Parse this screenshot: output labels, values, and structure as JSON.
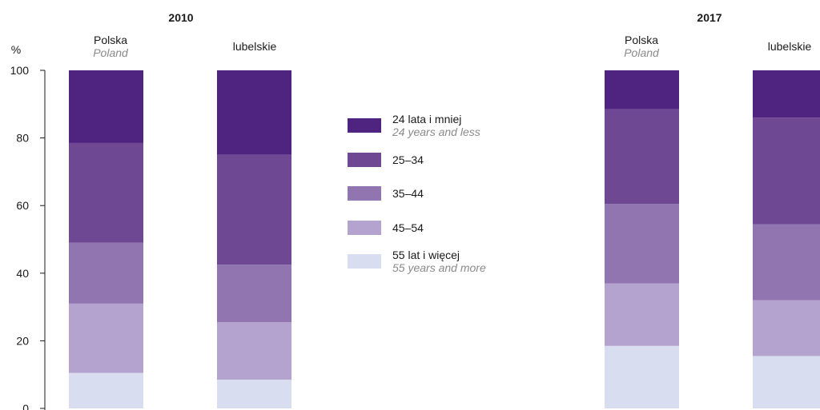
{
  "chart_data": {
    "type": "bar",
    "stacked": true,
    "ylabel": "%",
    "ylim": [
      0,
      100
    ],
    "yticks": [
      0,
      20,
      40,
      60,
      80,
      100
    ],
    "legend": {
      "placement": "center",
      "items": [
        {
          "key": "55+",
          "label": "55  lat i więcej",
          "label_en": "55 years and more",
          "color": "#d9ddf0"
        },
        {
          "key": "45-54",
          "label": "45–54",
          "label_en": "",
          "color": "#b4a2cf"
        },
        {
          "key": "35-44",
          "label": "35–44",
          "label_en": "",
          "color": "#9075b0"
        },
        {
          "key": "25-34",
          "label": "25–34",
          "label_en": "",
          "color": "#6f4894"
        },
        {
          "key": "24-",
          "label": "24 lata i mniej",
          "label_en": "24 years and less",
          "color": "#4f2480"
        }
      ]
    },
    "panels": [
      {
        "title": "2010",
        "categories": [
          {
            "label": "Polska",
            "label_en": "Poland"
          },
          {
            "label": "lubelskie",
            "label_en": ""
          }
        ],
        "series": [
          {
            "key": "55+",
            "values": [
              10.5,
              8.5
            ]
          },
          {
            "key": "45-54",
            "values": [
              20.5,
              17.0
            ]
          },
          {
            "key": "35-44",
            "values": [
              18.0,
              17.0
            ]
          },
          {
            "key": "25-34",
            "values": [
              29.5,
              32.5
            ]
          },
          {
            "key": "24-",
            "values": [
              21.5,
              25.0
            ]
          }
        ]
      },
      {
        "title": "2017",
        "categories": [
          {
            "label": "Polska",
            "label_en": "Poland"
          },
          {
            "label": "lubelskie",
            "label_en": ""
          }
        ],
        "series": [
          {
            "key": "55+",
            "values": [
              18.5,
              15.5
            ]
          },
          {
            "key": "45-54",
            "values": [
              18.5,
              16.5
            ]
          },
          {
            "key": "35-44",
            "values": [
              23.5,
              22.5
            ]
          },
          {
            "key": "25-34",
            "values": [
              28.0,
              31.5
            ]
          },
          {
            "key": "24-",
            "values": [
              11.5,
              14.0
            ]
          }
        ]
      }
    ]
  }
}
